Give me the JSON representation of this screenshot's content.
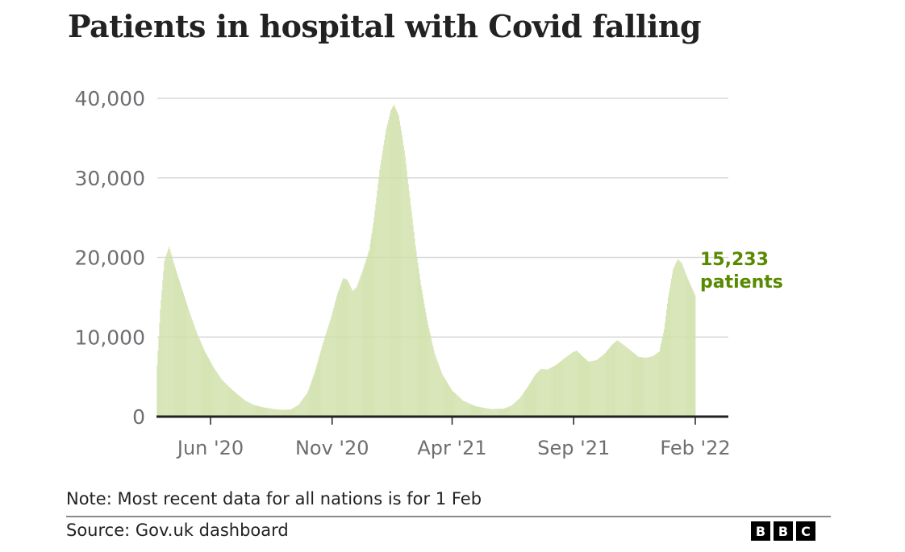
{
  "chart_data": {
    "type": "bar",
    "title": "Patients in hospital with Covid falling",
    "xlabel": "",
    "ylabel": "",
    "ylim": [
      0,
      40000
    ],
    "grid": true,
    "yticks": [
      {
        "value": 0,
        "label": "0"
      },
      {
        "value": 10000,
        "label": "10,000"
      },
      {
        "value": 20000,
        "label": "20,000"
      },
      {
        "value": 30000,
        "label": "30,000"
      },
      {
        "value": 40000,
        "label": "40,000"
      }
    ],
    "xrange": [
      "2020-03-26",
      "2022-02-01"
    ],
    "xticks": [
      {
        "date": "2020-06-01",
        "label": "Jun '20"
      },
      {
        "date": "2020-11-01",
        "label": "Nov '20"
      },
      {
        "date": "2021-04-01",
        "label": "Apr '21"
      },
      {
        "date": "2021-09-01",
        "label": "Sep '21"
      },
      {
        "date": "2022-02-01",
        "label": "Feb '22"
      }
    ],
    "series": [
      {
        "name": "Patients in hospital with Covid",
        "color": "#cfe0a8",
        "frequency": "daily (values sampled from curve)",
        "points": [
          [
            "2020-03-26",
            6500
          ],
          [
            "2020-03-30",
            13500
          ],
          [
            "2020-04-04",
            19500
          ],
          [
            "2020-04-10",
            21400
          ],
          [
            "2020-04-14",
            20000
          ],
          [
            "2020-04-20",
            18000
          ],
          [
            "2020-04-28",
            15500
          ],
          [
            "2020-05-06",
            13000
          ],
          [
            "2020-05-15",
            10500
          ],
          [
            "2020-05-25",
            8200
          ],
          [
            "2020-06-05",
            6200
          ],
          [
            "2020-06-15",
            4700
          ],
          [
            "2020-06-25",
            3700
          ],
          [
            "2020-07-05",
            2800
          ],
          [
            "2020-07-15",
            2000
          ],
          [
            "2020-07-25",
            1500
          ],
          [
            "2020-08-05",
            1200
          ],
          [
            "2020-08-20",
            950
          ],
          [
            "2020-09-01",
            850
          ],
          [
            "2020-09-10",
            900
          ],
          [
            "2020-09-20",
            1500
          ],
          [
            "2020-10-01",
            3000
          ],
          [
            "2020-10-10",
            5500
          ],
          [
            "2020-10-20",
            9000
          ],
          [
            "2020-10-31",
            12500
          ],
          [
            "2020-11-08",
            15500
          ],
          [
            "2020-11-15",
            17400
          ],
          [
            "2020-11-20",
            17200
          ],
          [
            "2020-11-27",
            15800
          ],
          [
            "2020-12-02",
            16300
          ],
          [
            "2020-12-10",
            18500
          ],
          [
            "2020-12-18",
            21000
          ],
          [
            "2020-12-24",
            25000
          ],
          [
            "2020-12-31",
            31000
          ],
          [
            "2021-01-08",
            36000
          ],
          [
            "2021-01-14",
            38500
          ],
          [
            "2021-01-18",
            39200
          ],
          [
            "2021-01-24",
            37800
          ],
          [
            "2021-01-31",
            33500
          ],
          [
            "2021-02-07",
            27500
          ],
          [
            "2021-02-14",
            21500
          ],
          [
            "2021-02-21",
            16500
          ],
          [
            "2021-03-01",
            12000
          ],
          [
            "2021-03-10",
            8000
          ],
          [
            "2021-03-20",
            5300
          ],
          [
            "2021-04-01",
            3300
          ],
          [
            "2021-04-15",
            2000
          ],
          [
            "2021-05-01",
            1300
          ],
          [
            "2021-05-20",
            950
          ],
          [
            "2021-06-05",
            1000
          ],
          [
            "2021-06-15",
            1400
          ],
          [
            "2021-06-25",
            2300
          ],
          [
            "2021-07-05",
            3700
          ],
          [
            "2021-07-15",
            5300
          ],
          [
            "2021-07-22",
            6000
          ],
          [
            "2021-07-30",
            5900
          ],
          [
            "2021-08-10",
            6500
          ],
          [
            "2021-08-20",
            7300
          ],
          [
            "2021-08-31",
            8100
          ],
          [
            "2021-09-05",
            8300
          ],
          [
            "2021-09-12",
            7600
          ],
          [
            "2021-09-20",
            6900
          ],
          [
            "2021-09-30",
            7100
          ],
          [
            "2021-10-10",
            7900
          ],
          [
            "2021-10-20",
            9100
          ],
          [
            "2021-10-26",
            9600
          ],
          [
            "2021-11-03",
            9000
          ],
          [
            "2021-11-12",
            8300
          ],
          [
            "2021-11-22",
            7500
          ],
          [
            "2021-12-01",
            7400
          ],
          [
            "2021-12-10",
            7600
          ],
          [
            "2021-12-18",
            8200
          ],
          [
            "2021-12-24",
            11000
          ],
          [
            "2021-12-29",
            15000
          ],
          [
            "2022-01-04",
            18500
          ],
          [
            "2022-01-10",
            19800
          ],
          [
            "2022-01-15",
            19300
          ],
          [
            "2022-01-22",
            17500
          ],
          [
            "2022-02-01",
            15233
          ]
        ]
      }
    ],
    "annotation": {
      "value": "15,233",
      "label": "patients",
      "color": "#588a00"
    }
  },
  "note": "Note: Most recent data for all nations is for 1 Feb",
  "source": "Source: Gov.uk dashboard",
  "logo": [
    "B",
    "B",
    "C"
  ]
}
